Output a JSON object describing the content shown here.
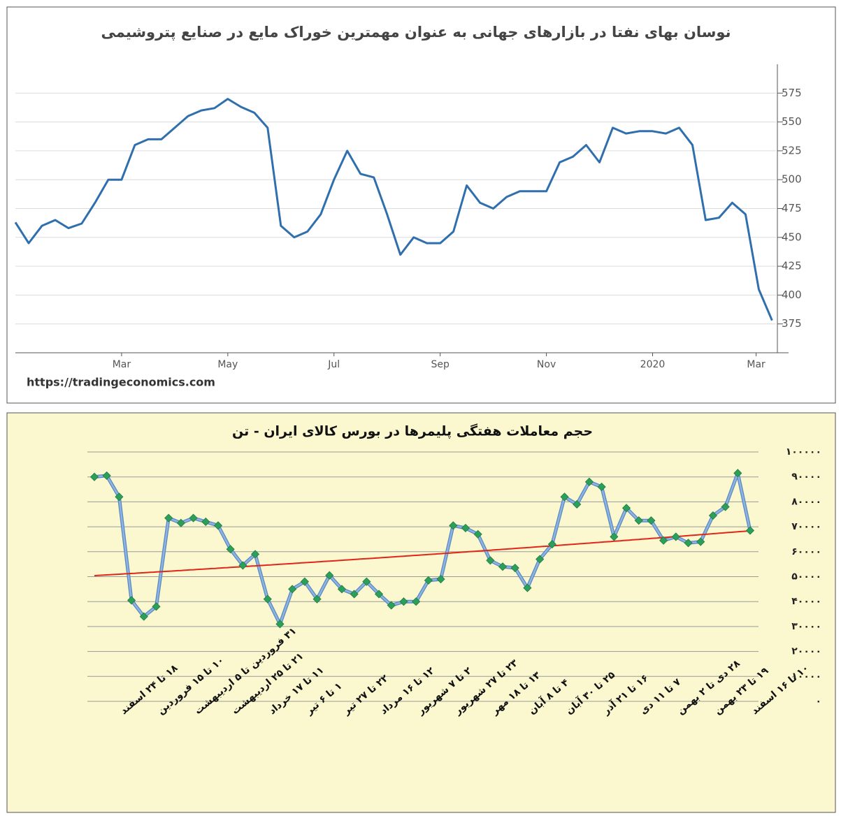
{
  "chart_data": [
    {
      "type": "line",
      "title": "نوسان بهای نفتا در بازارهای جهانی به عنوان مهمترین خوراک مایع در صنایع پتروشیمی",
      "source": "https://tradingeconomics.com",
      "color": "#2f6fad",
      "values": [
        463,
        445,
        460,
        465,
        458,
        462,
        480,
        500,
        500,
        530,
        535,
        535,
        545,
        555,
        560,
        562,
        570,
        563,
        558,
        545,
        460,
        450,
        455,
        470,
        500,
        525,
        505,
        502,
        470,
        435,
        450,
        445,
        445,
        455,
        495,
        480,
        475,
        485,
        490,
        490,
        490,
        515,
        520,
        530,
        515,
        545,
        540,
        542,
        542,
        540,
        545,
        530,
        465,
        467,
        480,
        470,
        405,
        378
      ],
      "xlim": [
        0,
        56.4
      ],
      "xticks": [
        {
          "value": 8,
          "label": "Mar"
        },
        {
          "value": 16,
          "label": "May"
        },
        {
          "value": 24,
          "label": "Jul"
        },
        {
          "value": 32,
          "label": "Sep"
        },
        {
          "value": 40,
          "label": "Nov"
        },
        {
          "value": 48,
          "label": "2020"
        },
        {
          "value": 55.8,
          "label": "Mar"
        }
      ],
      "ylim": [
        350,
        600
      ],
      "yticks": [
        375,
        400,
        425,
        450,
        475,
        500,
        525,
        550,
        575
      ],
      "grid": true,
      "yaxis_side": "right"
    },
    {
      "type": "line",
      "title": "حجم معاملات هفتگی پلیمرها در بورس کالای ایران - تن",
      "color": "#8db4e2",
      "marker": "diamond",
      "marker_color": "#2ca05a",
      "trendline": "exponential",
      "trendline_color": "#e0261b",
      "categories": [
        null,
        null,
        "۱۸ تا ۲۴ اسفند",
        null,
        null,
        "۱۰ تا ۱۵ فروردین",
        null,
        null,
        "۳۱ فروردین تا ۵ اردیبهشت",
        null,
        null,
        "۲۱ تا ۲۵ اردیبهشت",
        null,
        null,
        "۱۱ تا ۱۷ خرداد",
        null,
        null,
        "۱ تا ۶ تیر",
        null,
        null,
        "۲۲ تا ۲۷ تیر",
        null,
        null,
        "۱۲ تا ۱۶ مرداد",
        null,
        null,
        "۲ تا ۷ شهریور",
        null,
        null,
        "۲۳ تا ۲۷ شهریور",
        null,
        null,
        "۱۳ تا ۱۸ مهر",
        null,
        null,
        "۴ تا ۸ آبان",
        null,
        null,
        "۲۵ تا ۳۰ آبان",
        null,
        null,
        "۱۶ تا ۲۱ آذر",
        null,
        null,
        "۷ تا ۱۱ دی",
        null,
        null,
        "۲۸ دی تا ۲ بهمن",
        null,
        null,
        "۱۹ تا ۲۳ بهمن",
        null,
        null,
        "۱۰ تا ۱۶ اسفند"
      ],
      "values": [
        90000,
        90500,
        82000,
        40500,
        34000,
        38000,
        73500,
        71500,
        73500,
        72000,
        70500,
        61000,
        54500,
        59000,
        41000,
        31000,
        45000,
        48000,
        41000,
        50500,
        45000,
        43000,
        48000,
        43000,
        38500,
        40000,
        40000,
        48500,
        49000,
        70500,
        69500,
        67000,
        56500,
        54000,
        53500,
        45500,
        57000,
        63000,
        82000,
        79000,
        88000,
        86000,
        66000,
        77500,
        72500,
        72500,
        64500,
        66000,
        63500,
        64000,
        74500,
        78000,
        91500,
        68500
      ],
      "ylim": [
        0,
        100000
      ],
      "yticks": [
        {
          "value": 0,
          "label": "۰"
        },
        {
          "value": 10000,
          "label": "۱۰۰۰۰"
        },
        {
          "value": 20000,
          "label": "۲۰۰۰۰"
        },
        {
          "value": 30000,
          "label": "۳۰۰۰۰"
        },
        {
          "value": 40000,
          "label": "۴۰۰۰۰"
        },
        {
          "value": 50000,
          "label": "۵۰۰۰۰"
        },
        {
          "value": 60000,
          "label": "۶۰۰۰۰"
        },
        {
          "value": 70000,
          "label": "۷۰۰۰۰"
        },
        {
          "value": 80000,
          "label": "۸۰۰۰۰"
        },
        {
          "value": 90000,
          "label": "۹۰۰۰۰"
        },
        {
          "value": 100000,
          "label": "۱۰۰۰۰۰"
        }
      ],
      "grid": true,
      "yaxis_side": "right"
    }
  ]
}
